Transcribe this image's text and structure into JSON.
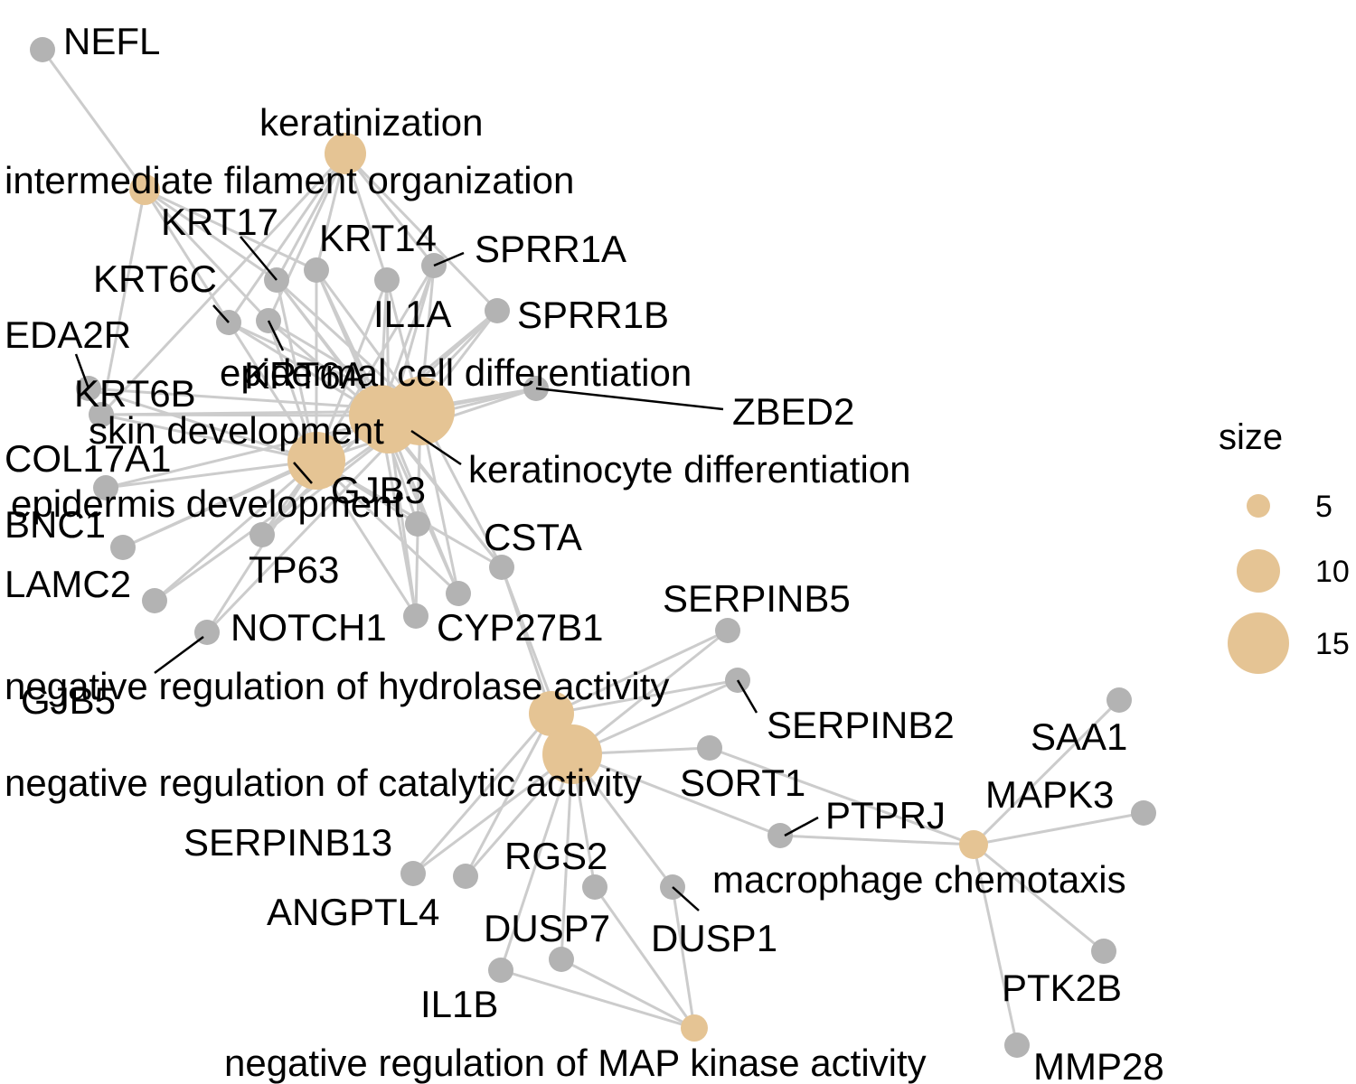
{
  "colors": {
    "gene_node": "#b3b3b3",
    "category_node": "#e5c494",
    "edge": "#cccccc",
    "label_line": "#000000"
  },
  "legend": {
    "title": "size",
    "items": [
      {
        "label": "5",
        "value": 5
      },
      {
        "label": "10",
        "value": 10
      },
      {
        "label": "15",
        "value": 15
      }
    ]
  },
  "categories": [
    {
      "id": "keratinization",
      "label": "keratinization",
      "size": 8
    },
    {
      "id": "ifo",
      "label": "intermediate filament organization",
      "size": 4
    },
    {
      "id": "ecd",
      "label": "epidermal cell differentiation",
      "size": 15
    },
    {
      "id": "skin",
      "label": "skin development",
      "size": 17
    },
    {
      "id": "kd",
      "label": "keratinocyte differentiation",
      "size": 14
    },
    {
      "id": "ed",
      "label": "epidermis development",
      "size": 13
    },
    {
      "id": "nrha",
      "label": "negative regulation of hydrolase activity",
      "size": 10
    },
    {
      "id": "nrca",
      "label": "negative regulation of catalytic activity",
      "size": 14
    },
    {
      "id": "mc",
      "label": "macrophage chemotaxis",
      "size": 4
    },
    {
      "id": "nrmapk",
      "label": "negative regulation of MAP kinase activity",
      "size": 4
    }
  ],
  "genes": [
    {
      "id": "NEFL",
      "label": "NEFL"
    },
    {
      "id": "KRT17",
      "label": "KRT17"
    },
    {
      "id": "KRT14",
      "label": "KRT14"
    },
    {
      "id": "SPRR1A",
      "label": "SPRR1A"
    },
    {
      "id": "KRT6C",
      "label": "KRT6C"
    },
    {
      "id": "IL1A",
      "label": "IL1A"
    },
    {
      "id": "SPRR1B",
      "label": "SPRR1B"
    },
    {
      "id": "EDA2R",
      "label": "EDA2R"
    },
    {
      "id": "KRT6A",
      "label": "KRT6A"
    },
    {
      "id": "KRT6B",
      "label": "KRT6B"
    },
    {
      "id": "ZBED2",
      "label": "ZBED2"
    },
    {
      "id": "COL17A1",
      "label": "COL17A1"
    },
    {
      "id": "GJB3",
      "label": "GJB3"
    },
    {
      "id": "BNC1",
      "label": "BNC1"
    },
    {
      "id": "CSTA",
      "label": "CSTA"
    },
    {
      "id": "LAMC2",
      "label": "LAMC2"
    },
    {
      "id": "TP63",
      "label": "TP63"
    },
    {
      "id": "NOTCH1",
      "label": "NOTCH1"
    },
    {
      "id": "CYP27B1",
      "label": "CYP27B1"
    },
    {
      "id": "SERPINB5",
      "label": "SERPINB5"
    },
    {
      "id": "GJB5",
      "label": "GJB5"
    },
    {
      "id": "SERPINB2",
      "label": "SERPINB2"
    },
    {
      "id": "SAA1",
      "label": "SAA1"
    },
    {
      "id": "SORT1",
      "label": "SORT1"
    },
    {
      "id": "MAPK3",
      "label": "MAPK3"
    },
    {
      "id": "PTPRJ",
      "label": "PTPRJ"
    },
    {
      "id": "SERPINB13",
      "label": "SERPINB13"
    },
    {
      "id": "RGS2",
      "label": "RGS2"
    },
    {
      "id": "ANGPTL4",
      "label": "ANGPTL4"
    },
    {
      "id": "DUSP7",
      "label": "DUSP7"
    },
    {
      "id": "DUSP1",
      "label": "DUSP1"
    },
    {
      "id": "IL1B",
      "label": "IL1B"
    },
    {
      "id": "PTK2B",
      "label": "PTK2B"
    },
    {
      "id": "MMP28",
      "label": "MMP28"
    }
  ],
  "edges": [
    [
      "NEFL",
      "ifo"
    ],
    [
      "KRT17",
      "keratinization"
    ],
    [
      "KRT17",
      "ifo"
    ],
    [
      "KRT17",
      "ecd"
    ],
    [
      "KRT17",
      "skin"
    ],
    [
      "KRT17",
      "kd"
    ],
    [
      "KRT17",
      "ed"
    ],
    [
      "KRT14",
      "keratinization"
    ],
    [
      "KRT14",
      "ifo"
    ],
    [
      "KRT14",
      "ecd"
    ],
    [
      "KRT14",
      "skin"
    ],
    [
      "KRT14",
      "kd"
    ],
    [
      "KRT14",
      "ed"
    ],
    [
      "SPRR1A",
      "keratinization"
    ],
    [
      "SPRR1A",
      "ecd"
    ],
    [
      "SPRR1A",
      "skin"
    ],
    [
      "SPRR1A",
      "kd"
    ],
    [
      "SPRR1A",
      "ed"
    ],
    [
      "SPRR1B",
      "keratinization"
    ],
    [
      "SPRR1B",
      "ecd"
    ],
    [
      "SPRR1B",
      "skin"
    ],
    [
      "SPRR1B",
      "kd"
    ],
    [
      "SPRR1B",
      "ed"
    ],
    [
      "IL1A",
      "keratinization"
    ],
    [
      "IL1A",
      "ecd"
    ],
    [
      "IL1A",
      "skin"
    ],
    [
      "IL1A",
      "kd"
    ],
    [
      "IL1A",
      "ed"
    ],
    [
      "KRT6C",
      "keratinization"
    ],
    [
      "KRT6C",
      "ifo"
    ],
    [
      "KRT6C",
      "ecd"
    ],
    [
      "KRT6C",
      "skin"
    ],
    [
      "KRT6C",
      "ed"
    ],
    [
      "KRT6A",
      "keratinization"
    ],
    [
      "KRT6A",
      "ifo"
    ],
    [
      "KRT6A",
      "ecd"
    ],
    [
      "KRT6A",
      "skin"
    ],
    [
      "KRT6A",
      "ed"
    ],
    [
      "KRT6B",
      "keratinization"
    ],
    [
      "KRT6B",
      "ifo"
    ],
    [
      "KRT6B",
      "ecd"
    ],
    [
      "KRT6B",
      "skin"
    ],
    [
      "KRT6B",
      "ed"
    ],
    [
      "EDA2R",
      "skin"
    ],
    [
      "EDA2R",
      "ed"
    ],
    [
      "ZBED2",
      "ecd"
    ],
    [
      "ZBED2",
      "skin"
    ],
    [
      "ZBED2",
      "kd"
    ],
    [
      "ZBED2",
      "ed"
    ],
    [
      "COL17A1",
      "skin"
    ],
    [
      "COL17A1",
      "ed"
    ],
    [
      "GJB3",
      "skin"
    ],
    [
      "GJB3",
      "ed"
    ],
    [
      "GJB3",
      "ecd"
    ],
    [
      "BNC1",
      "skin"
    ],
    [
      "BNC1",
      "ed"
    ],
    [
      "LAMC2",
      "skin"
    ],
    [
      "LAMC2",
      "ed"
    ],
    [
      "TP63",
      "skin"
    ],
    [
      "TP63",
      "ed"
    ],
    [
      "TP63",
      "ecd"
    ],
    [
      "NOTCH1",
      "skin"
    ],
    [
      "NOTCH1",
      "ed"
    ],
    [
      "CSTA",
      "ecd"
    ],
    [
      "CSTA",
      "skin"
    ],
    [
      "CSTA",
      "kd"
    ],
    [
      "CSTA",
      "ed"
    ],
    [
      "CSTA",
      "nrha"
    ],
    [
      "CSTA",
      "nrca"
    ],
    [
      "CYP27B1",
      "ecd"
    ],
    [
      "CYP27B1",
      "skin"
    ],
    [
      "CYP27B1",
      "kd"
    ],
    [
      "CYP27B1",
      "ed"
    ],
    [
      "GJB5",
      "ecd"
    ],
    [
      "GJB5",
      "skin"
    ],
    [
      "GJB5",
      "kd"
    ],
    [
      "GJB5",
      "ed"
    ],
    [
      "SERPINB5",
      "nrha"
    ],
    [
      "SERPINB5",
      "nrca"
    ],
    [
      "SERPINB2",
      "nrha"
    ],
    [
      "SERPINB2",
      "nrca"
    ],
    [
      "SORT1",
      "nrca"
    ],
    [
      "SORT1",
      "mc"
    ],
    [
      "PTPRJ",
      "nrca"
    ],
    [
      "PTPRJ",
      "mc"
    ],
    [
      "SAA1",
      "mc"
    ],
    [
      "MAPK3",
      "mc"
    ],
    [
      "PTK2B",
      "mc"
    ],
    [
      "MMP28",
      "mc"
    ],
    [
      "SERPINB13",
      "nrha"
    ],
    [
      "SERPINB13",
      "nrca"
    ],
    [
      "ANGPTL4",
      "nrha"
    ],
    [
      "ANGPTL4",
      "nrca"
    ],
    [
      "RGS2",
      "nrca"
    ],
    [
      "RGS2",
      "nrmapk"
    ],
    [
      "DUSP7",
      "nrca"
    ],
    [
      "DUSP7",
      "nrmapk"
    ],
    [
      "DUSP1",
      "nrca"
    ],
    [
      "DUSP1",
      "nrmapk"
    ],
    [
      "IL1B",
      "nrca"
    ],
    [
      "IL1B",
      "nrmapk"
    ]
  ]
}
